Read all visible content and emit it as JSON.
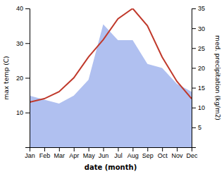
{
  "chart_data": {
    "type": "line",
    "categories": [
      "Jan",
      "Feb",
      "Mar",
      "Apr",
      "May",
      "Jun",
      "Jul",
      "Aug",
      "Sep",
      "Oct",
      "Nov",
      "Dec"
    ],
    "xlabel": "date (month)",
    "ylabel": "max temp (C)",
    "y2label": "med. precipitation (kg/m2)",
    "ylim": [
      0,
      40
    ],
    "yticks": [
      10,
      20,
      30,
      40
    ],
    "y2lim": [
      0,
      35
    ],
    "y2ticks": [
      5,
      10,
      15,
      20,
      25,
      30,
      35
    ],
    "series": [
      {
        "type": "area",
        "axis": "y2",
        "color": "#b0c0f0",
        "values": [
          13,
          12,
          11,
          13,
          17,
          31,
          27,
          27,
          21,
          20,
          16,
          14
        ]
      },
      {
        "type": "line",
        "color": "#c0392b",
        "values": [
          13,
          14,
          16,
          20,
          26,
          31,
          37,
          40,
          35,
          26,
          19,
          14
        ]
      }
    ]
  }
}
